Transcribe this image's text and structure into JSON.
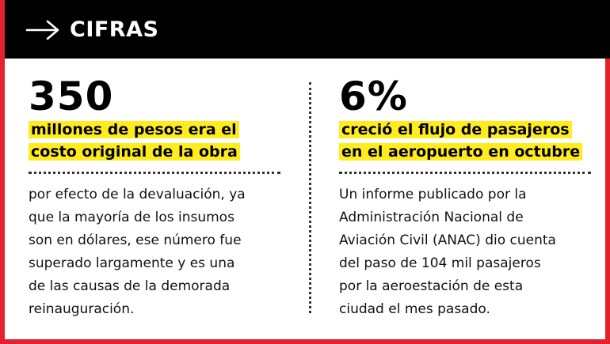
{
  "header": {
    "title": "CIFRAS",
    "arrow_icon": "right-arrow-icon"
  },
  "colors": {
    "frame": "#e3222e",
    "header_bg": "#000000",
    "highlight": "#ffec1f"
  },
  "left": {
    "figure": "350",
    "highlight_line_1": "millones de pesos era el",
    "highlight_line_2": "costo original de la obra",
    "body": "por efecto de la devaluación, ya\nque la mayoría de los insumos\nson en dólares, ese número  fue\nsuperado largamente y es una\nde las causas de la demorada\nreinauguración."
  },
  "right": {
    "figure": "6%",
    "highlight_line_1": "creció el flujo de pasajeros",
    "highlight_line_2": "en el aeropuerto en octubre",
    "body": "Un informe publicado por la\nAdministración Nacional de\nAviación Civil (ANAC) dio cuenta\ndel paso de 104 mil pasajeros\npor la aeroestación de esta\nciudad el mes pasado."
  }
}
